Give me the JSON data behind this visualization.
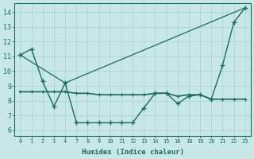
{
  "xlabel": "Humidex (Indice chaleur)",
  "bg_color": "#c8e8e8",
  "grid_color": "#b0d8d8",
  "line_color": "#1a6b5a",
  "xtick_labels": [
    "0",
    "1",
    "2",
    "3",
    "4",
    "7",
    "8",
    "9",
    "10",
    "11",
    "12",
    "13",
    "14",
    "15",
    "16",
    "18",
    "19",
    "20",
    "21",
    "22",
    "23"
  ],
  "yticks": [
    6,
    7,
    8,
    9,
    10,
    11,
    12,
    13,
    14
  ],
  "ylim": [
    5.6,
    14.6
  ],
  "series1_y": [
    11.1,
    11.5,
    9.3,
    7.6,
    9.2,
    6.5,
    6.5,
    6.5,
    6.5,
    6.5,
    6.5,
    7.5,
    8.5,
    8.5,
    7.8,
    8.3,
    8.4,
    8.1,
    10.4,
    13.3,
    14.3
  ],
  "series2_y": [
    8.6,
    8.6,
    8.6,
    8.6,
    8.6,
    8.5,
    8.5,
    8.4,
    8.4,
    8.4,
    8.4,
    8.4,
    8.5,
    8.5,
    8.3,
    8.4,
    8.4,
    8.1,
    8.1,
    8.1,
    8.1
  ],
  "series3_y": [
    11.1,
    null,
    null,
    null,
    9.2,
    null,
    null,
    null,
    null,
    null,
    null,
    null,
    null,
    null,
    null,
    null,
    null,
    null,
    null,
    null,
    14.3
  ]
}
